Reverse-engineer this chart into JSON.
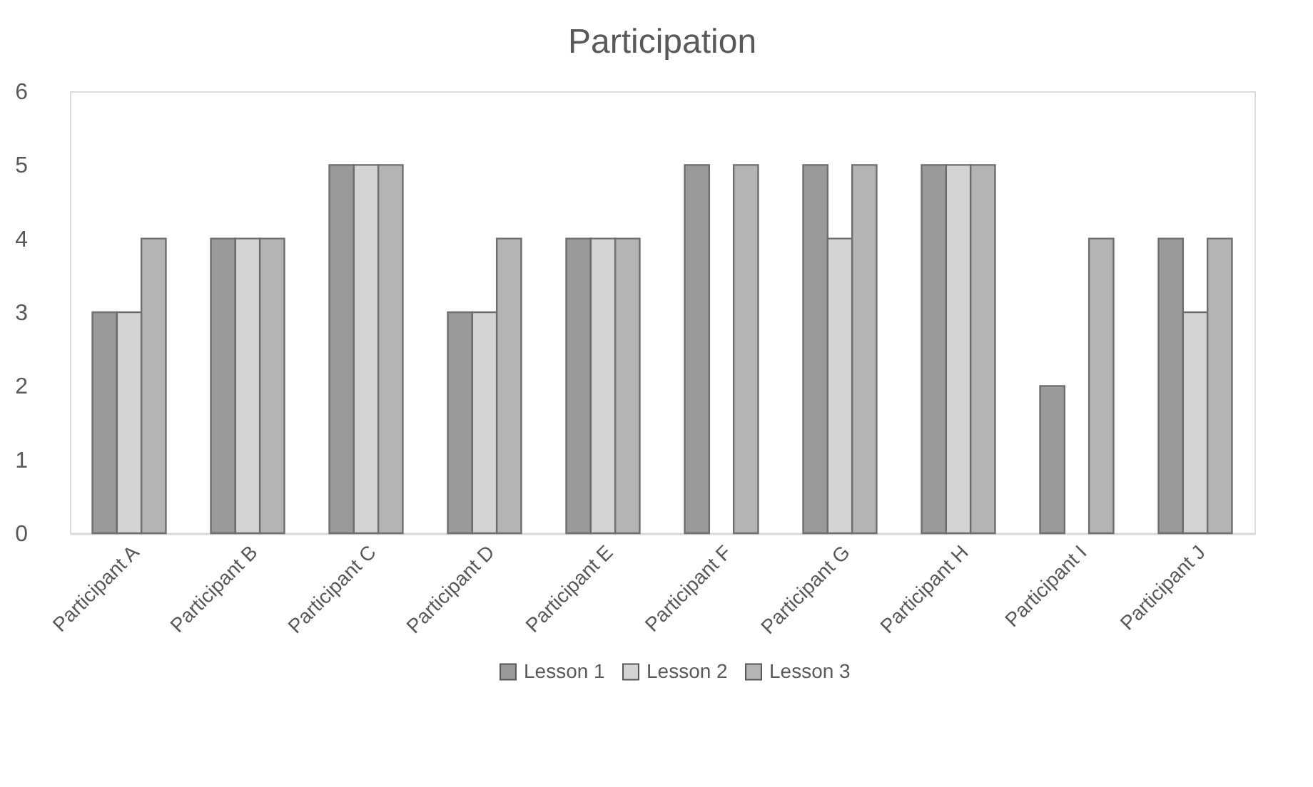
{
  "chart_data": {
    "type": "bar",
    "title": "Participation",
    "categories": [
      "Participant A",
      "Participant B",
      "Participant C",
      "Participant D",
      "Participant E",
      "Participant F",
      "Participant G",
      "Participant H",
      "Participant I",
      "Participant J"
    ],
    "series": [
      {
        "name": "Lesson 1",
        "color": "#9a9a9a",
        "values": [
          3,
          4,
          5,
          3,
          4,
          5,
          5,
          5,
          2,
          4
        ]
      },
      {
        "name": "Lesson 2",
        "color": "#d4d4d4",
        "values": [
          3,
          4,
          5,
          3,
          4,
          null,
          4,
          5,
          null,
          3
        ]
      },
      {
        "name": "Lesson 3",
        "color": "#b4b4b4",
        "values": [
          4,
          4,
          5,
          4,
          4,
          5,
          5,
          5,
          4,
          4
        ]
      }
    ],
    "ylim": [
      0,
      6
    ],
    "yticks": [
      0,
      1,
      2,
      3,
      4,
      5,
      6
    ],
    "grid": false,
    "legend": "bottom"
  }
}
